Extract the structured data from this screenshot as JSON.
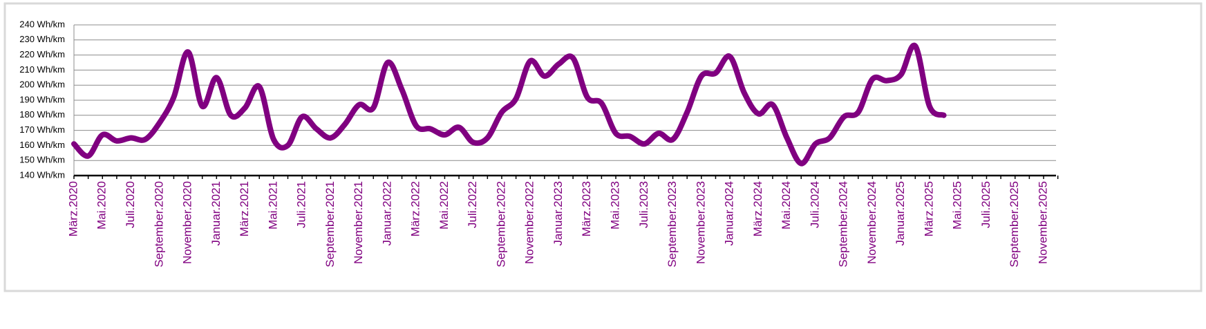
{
  "chart_data": {
    "type": "line",
    "categories": [
      "März.2020",
      null,
      "Mai.2020",
      null,
      "Juli.2020",
      null,
      "September.2020",
      null,
      "November.2020",
      null,
      "Januar.2021",
      null,
      "März.2021",
      null,
      "Mai.2021",
      null,
      "Juli.2021",
      null,
      "September.2021",
      null,
      "November.2021",
      null,
      "Januar.2022",
      null,
      "März.2022",
      null,
      "Mai.2022",
      null,
      "Juli.2022",
      null,
      "September.2022",
      null,
      "November.2022",
      null,
      "Januar.2023",
      null,
      "März.2023",
      null,
      "Mai.2023",
      null,
      "Juli.2023",
      null,
      "September.2023",
      null,
      "November.2023",
      null,
      "Januar.2024",
      null,
      "März.2024",
      null,
      "Mai.2024",
      null,
      "Juli.2024",
      null,
      "September.2024",
      null,
      "November.2024",
      null,
      "Januar.2025",
      null,
      "März.2025",
      null,
      "Mai.2025",
      null,
      "Juli.2025",
      null,
      "September.2025",
      null,
      "November.2025",
      null
    ],
    "series": [
      {
        "color": "#800080",
        "values": [
          161,
          153,
          167,
          163,
          165,
          164,
          175,
          192,
          222,
          186,
          205,
          180,
          185,
          199,
          164,
          160,
          179,
          171,
          165,
          174,
          187,
          185,
          215,
          197,
          173,
          171,
          167,
          172,
          162,
          165,
          182,
          191,
          216,
          206,
          214,
          218,
          192,
          188,
          168,
          166,
          161,
          168,
          164,
          182,
          206,
          208,
          219,
          195,
          181,
          187,
          165,
          148,
          161,
          165,
          179,
          182,
          204,
          203,
          207,
          226,
          186,
          180,
          null,
          null,
          null,
          null,
          null,
          null,
          null,
          null
        ]
      }
    ],
    "ylim": [
      140,
      240
    ],
    "yticks": [
      {
        "value": 140,
        "label": "140 Wh/km"
      },
      {
        "value": 150,
        "label": "150 Wh/km"
      },
      {
        "value": 160,
        "label": "160 Wh/km"
      },
      {
        "value": 170,
        "label": "170 Wh/km"
      },
      {
        "value": 180,
        "label": "180 Wh/km"
      },
      {
        "value": 190,
        "label": "190 Wh/km"
      },
      {
        "value": 200,
        "label": "200 Wh/km"
      },
      {
        "value": 210,
        "label": "210 Wh/km"
      },
      {
        "value": 220,
        "label": "220 Wh/km"
      },
      {
        "value": 230,
        "label": "230 Wh/km"
      },
      {
        "value": 240,
        "label": "240 Wh/km"
      }
    ],
    "grid": true
  }
}
